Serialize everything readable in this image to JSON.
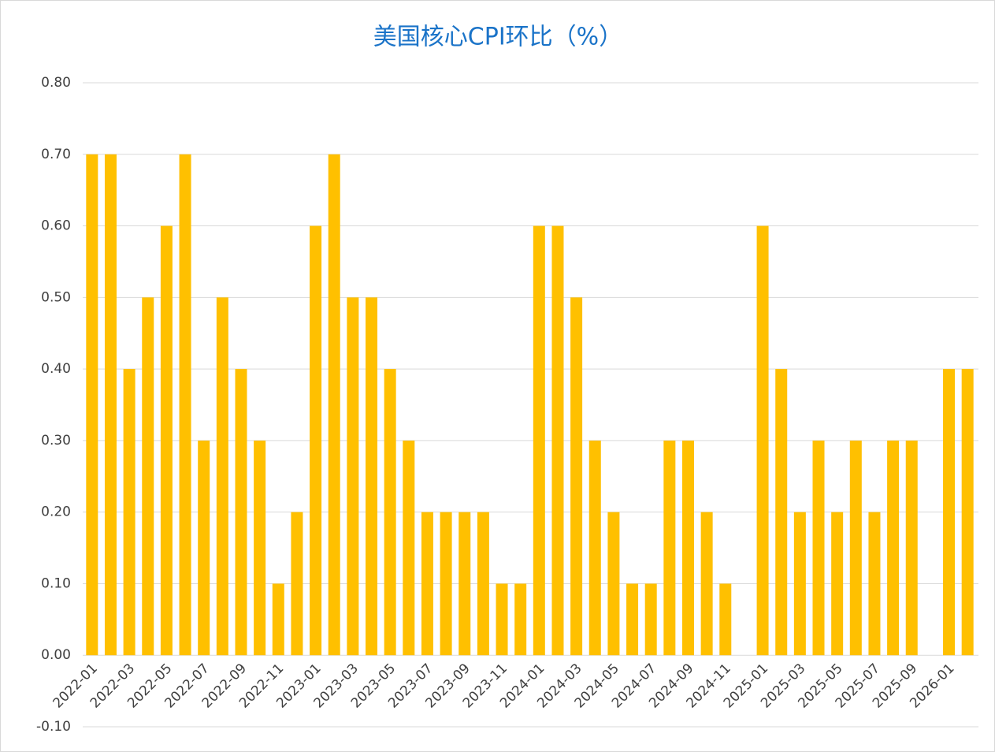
{
  "chart_data": {
    "type": "bar",
    "title": "美国核心CPI环比（%）",
    "categories": [
      "2022-01",
      null,
      "2022-03",
      null,
      "2022-05",
      null,
      "2022-07",
      null,
      "2022-09",
      null,
      "2022-11",
      null,
      "2023-01",
      null,
      "2023-03",
      null,
      "2023-05",
      null,
      "2023-07",
      null,
      "2023-09",
      null,
      "2023-11",
      null,
      "2024-01",
      null,
      "2024-03",
      null,
      "2024-05",
      null,
      "2024-07",
      null,
      "2024-09",
      null,
      "2024-11",
      null,
      "2025-01",
      null,
      "2025-03",
      null,
      "2025-05",
      null,
      "2025-07",
      null,
      "2025-09",
      null,
      "2026-01",
      null
    ],
    "values": [
      0.7,
      0.7,
      0.4,
      0.5,
      0.6,
      0.7,
      0.3,
      0.5,
      0.4,
      0.3,
      0.1,
      0.2,
      0.6,
      0.7,
      0.5,
      0.5,
      0.4,
      0.3,
      0.2,
      0.2,
      0.2,
      0.2,
      0.1,
      0.1,
      0.6,
      0.6,
      0.5,
      0.3,
      0.2,
      0.1,
      0.1,
      0.3,
      0.3,
      0.2,
      0.1,
      null,
      0.6,
      0.4,
      0.2,
      0.3,
      0.2,
      0.3,
      0.2,
      0.3,
      0.3,
      null,
      0.4,
      0.4
    ],
    "color": "#ffc000",
    "ylim": [
      -0.1,
      0.8
    ],
    "yticks": [
      {
        "value": -0.1,
        "label": "-0.10"
      },
      {
        "value": 0,
        "label": "0.00"
      },
      {
        "value": 0.1,
        "label": "0.10"
      },
      {
        "value": 0.2,
        "label": "0.20"
      },
      {
        "value": 0.3,
        "label": "0.30"
      },
      {
        "value": 0.4,
        "label": "0.40"
      },
      {
        "value": 0.5,
        "label": "0.50"
      },
      {
        "value": 0.6,
        "label": "0.60"
      },
      {
        "value": 0.7,
        "label": "0.70"
      },
      {
        "value": 0.8,
        "label": "0.80"
      }
    ],
    "grid": true
  }
}
